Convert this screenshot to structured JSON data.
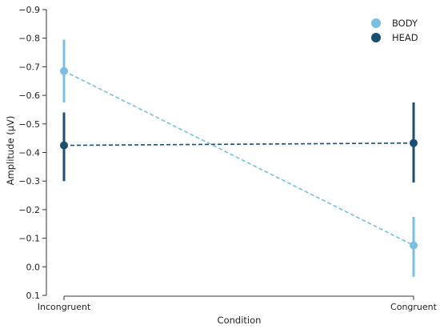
{
  "chart_data": {
    "type": "line",
    "xlabel": "Condition",
    "ylabel": "Amplitude (μV)",
    "categories": [
      "Incongruent",
      "Congruent"
    ],
    "ylim": [
      0.1,
      -0.9
    ],
    "y_axis_inverted": true,
    "yticks": [
      0.1,
      0.0,
      -0.1,
      -0.2,
      -0.3,
      -0.4,
      -0.5,
      -0.6,
      -0.7,
      -0.8,
      -0.9
    ],
    "ytick_labels": [
      "0.1",
      "0.0",
      "−0.1",
      "−0.2",
      "−0.3",
      "−0.4",
      "−0.5",
      "−0.6",
      "−0.7",
      "−0.8",
      "−0.9"
    ],
    "grid": false,
    "legend_position": "top-right",
    "series": [
      {
        "name": "BODY",
        "color": "#7bbfe0",
        "values": [
          -0.685,
          -0.075
        ],
        "error_low": [
          -0.575,
          0.035
        ],
        "error_high": [
          -0.795,
          -0.175
        ],
        "line_style": "dashed"
      },
      {
        "name": "HEAD",
        "color": "#1b4f72",
        "values": [
          -0.425,
          -0.433
        ],
        "error_low": [
          -0.3,
          -0.295
        ],
        "error_high": [
          -0.54,
          -0.575
        ],
        "line_style": "dashed"
      }
    ]
  }
}
